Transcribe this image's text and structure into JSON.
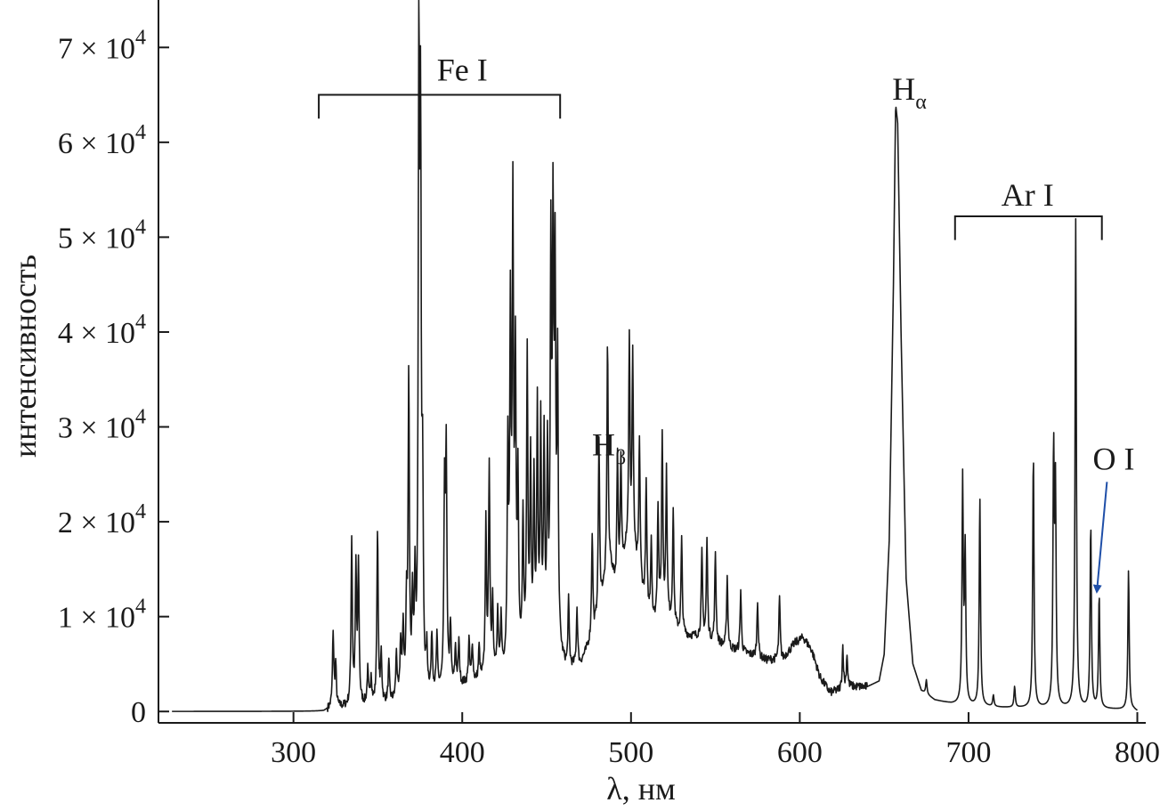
{
  "chart_data": {
    "type": "line",
    "title": "",
    "xlabel": "λ, нм",
    "ylabel": "интенсивность",
    "xlim": [
      220,
      805
    ],
    "ylim": [
      -1200,
      75000
    ],
    "grid": false,
    "legend": "none",
    "line_color": "#1a1a1a",
    "arrow_color": "#1f4fa8",
    "x_ticks": [
      300,
      400,
      500,
      600,
      700,
      800
    ],
    "x_tick_labels": [
      "300",
      "400",
      "500",
      "600",
      "700",
      "800"
    ],
    "y_ticks": [
      0,
      10000,
      20000,
      30000,
      40000,
      50000,
      60000,
      70000
    ],
    "y_tick_labels": [
      {
        "mant": "0",
        "exp": ""
      },
      {
        "mant": "1 × 10",
        "exp": "4"
      },
      {
        "mant": "2 × 10",
        "exp": "4"
      },
      {
        "mant": "3 × 10",
        "exp": "4"
      },
      {
        "mant": "4 × 10",
        "exp": "4"
      },
      {
        "mant": "5 × 10",
        "exp": "4"
      },
      {
        "mant": "6 × 10",
        "exp": "4"
      },
      {
        "mant": "7 × 10",
        "exp": "4"
      }
    ],
    "continuum": [
      [
        228,
        0
      ],
      [
        318,
        0
      ],
      [
        322,
        300
      ],
      [
        330,
        400
      ],
      [
        340,
        600
      ],
      [
        350,
        700
      ],
      [
        360,
        900
      ],
      [
        370,
        1200
      ],
      [
        380,
        1600
      ],
      [
        390,
        2200
      ],
      [
        400,
        2700
      ],
      [
        410,
        3000
      ],
      [
        420,
        3600
      ],
      [
        430,
        4300
      ],
      [
        440,
        5000
      ],
      [
        450,
        5500
      ],
      [
        458,
        5300
      ],
      [
        462,
        4200
      ],
      [
        470,
        4800
      ],
      [
        478,
        8000
      ],
      [
        483,
        12000
      ],
      [
        488,
        15000
      ],
      [
        492,
        12000
      ],
      [
        497,
        17000
      ],
      [
        502,
        16000
      ],
      [
        507,
        12000
      ],
      [
        512,
        9000
      ],
      [
        520,
        10000
      ],
      [
        530,
        8000
      ],
      [
        540,
        7800
      ],
      [
        550,
        7200
      ],
      [
        560,
        6500
      ],
      [
        570,
        6000
      ],
      [
        580,
        5400
      ],
      [
        590,
        5500
      ],
      [
        597,
        7200
      ],
      [
        602,
        7800
      ],
      [
        607,
        6500
      ],
      [
        612,
        3600
      ],
      [
        618,
        2000
      ],
      [
        625,
        2300
      ],
      [
        630,
        2600
      ],
      [
        640,
        2600
      ],
      [
        647,
        3200
      ],
      [
        650,
        6000
      ],
      [
        653,
        18000
      ],
      [
        655.5,
        45000
      ],
      [
        656.8,
        64000
      ],
      [
        658,
        62000
      ],
      [
        660,
        40000
      ],
      [
        663,
        14000
      ],
      [
        667,
        5000
      ],
      [
        672,
        2200
      ],
      [
        680,
        1200
      ],
      [
        690,
        800
      ],
      [
        700,
        600
      ],
      [
        720,
        400
      ],
      [
        740,
        350
      ],
      [
        760,
        300
      ],
      [
        780,
        250
      ],
      [
        798,
        150
      ],
      [
        800,
        0
      ]
    ],
    "peaks": [
      {
        "x": 323.5,
        "h": 8000
      },
      {
        "x": 325,
        "h": 4500
      },
      {
        "x": 334.5,
        "h": 17500
      },
      {
        "x": 337,
        "h": 14000
      },
      {
        "x": 338.5,
        "h": 14500
      },
      {
        "x": 344,
        "h": 3500
      },
      {
        "x": 346,
        "h": 3000
      },
      {
        "x": 349.8,
        "h": 18500
      },
      {
        "x": 352,
        "h": 5000
      },
      {
        "x": 356.5,
        "h": 4000
      },
      {
        "x": 361,
        "h": 5000
      },
      {
        "x": 363.5,
        "h": 6000
      },
      {
        "x": 365,
        "h": 7500
      },
      {
        "x": 367,
        "h": 9000
      },
      {
        "x": 368.3,
        "h": 33500
      },
      {
        "x": 370.5,
        "h": 9000
      },
      {
        "x": 372,
        "h": 11000
      },
      {
        "x": 374.3,
        "h": 64000
      },
      {
        "x": 375.3,
        "h": 55000
      },
      {
        "x": 376.5,
        "h": 20000
      },
      {
        "x": 379,
        "h": 4000
      },
      {
        "x": 382,
        "h": 6000
      },
      {
        "x": 385,
        "h": 5500
      },
      {
        "x": 389.5,
        "h": 20000
      },
      {
        "x": 390.5,
        "h": 24500
      },
      {
        "x": 393,
        "h": 6500
      },
      {
        "x": 396,
        "h": 4000
      },
      {
        "x": 398,
        "h": 4500
      },
      {
        "x": 404,
        "h": 4500
      },
      {
        "x": 406,
        "h": 4000
      },
      {
        "x": 410,
        "h": 3500
      },
      {
        "x": 414,
        "h": 16000
      },
      {
        "x": 416,
        "h": 22000
      },
      {
        "x": 418,
        "h": 8000
      },
      {
        "x": 421,
        "h": 6000
      },
      {
        "x": 423,
        "h": 5500
      },
      {
        "x": 427,
        "h": 22000
      },
      {
        "x": 428.5,
        "h": 35000
      },
      {
        "x": 430,
        "h": 47000
      },
      {
        "x": 431.5,
        "h": 30000
      },
      {
        "x": 433,
        "h": 18000
      },
      {
        "x": 436,
        "h": 15000
      },
      {
        "x": 438.5,
        "h": 32000
      },
      {
        "x": 440.5,
        "h": 20000
      },
      {
        "x": 442.5,
        "h": 18000
      },
      {
        "x": 444.5,
        "h": 25500
      },
      {
        "x": 446.5,
        "h": 24000
      },
      {
        "x": 448.5,
        "h": 22000
      },
      {
        "x": 450.5,
        "h": 20000
      },
      {
        "x": 452.5,
        "h": 41000
      },
      {
        "x": 453.8,
        "h": 42000
      },
      {
        "x": 455,
        "h": 38000
      },
      {
        "x": 456.5,
        "h": 30000
      },
      {
        "x": 463,
        "h": 7000
      },
      {
        "x": 468,
        "h": 6000
      },
      {
        "x": 477,
        "h": 11000
      },
      {
        "x": 481,
        "h": 18000
      },
      {
        "x": 486.1,
        "h": 25000
      },
      {
        "x": 492,
        "h": 15000
      },
      {
        "x": 494,
        "h": 12000
      },
      {
        "x": 499,
        "h": 22000
      },
      {
        "x": 501,
        "h": 21000
      },
      {
        "x": 505,
        "h": 15000
      },
      {
        "x": 509,
        "h": 13000
      },
      {
        "x": 512,
        "h": 9000
      },
      {
        "x": 516,
        "h": 12000
      },
      {
        "x": 518.5,
        "h": 19000
      },
      {
        "x": 521,
        "h": 15000
      },
      {
        "x": 525,
        "h": 12000
      },
      {
        "x": 530,
        "h": 10000
      },
      {
        "x": 542,
        "h": 9000
      },
      {
        "x": 545,
        "h": 10500
      },
      {
        "x": 550,
        "h": 9500
      },
      {
        "x": 557,
        "h": 7500
      },
      {
        "x": 565,
        "h": 6500
      },
      {
        "x": 575,
        "h": 6000
      },
      {
        "x": 588,
        "h": 6500
      },
      {
        "x": 625.5,
        "h": 4500
      },
      {
        "x": 628,
        "h": 3500
      },
      {
        "x": 675,
        "h": 1500
      },
      {
        "x": 696.5,
        "h": 23500
      },
      {
        "x": 698,
        "h": 16000
      },
      {
        "x": 706.7,
        "h": 22000
      },
      {
        "x": 714.7,
        "h": 1200
      },
      {
        "x": 727.3,
        "h": 2200
      },
      {
        "x": 738.4,
        "h": 27000
      },
      {
        "x": 750.4,
        "h": 26500
      },
      {
        "x": 751.5,
        "h": 22000
      },
      {
        "x": 763.5,
        "h": 51500
      },
      {
        "x": 772.4,
        "h": 19500
      },
      {
        "x": 777.4,
        "h": 12000
      },
      {
        "x": 794.8,
        "h": 14800
      }
    ],
    "annotations": [
      {
        "name": "fe-i",
        "text": "Fe I",
        "sub": "",
        "x": 400,
        "y": 66500,
        "bracket": [
          315,
          458
        ],
        "bracket_y": 65000,
        "bracket_drop": 2500
      },
      {
        "name": "ar-i",
        "text": "Ar I",
        "sub": "",
        "x": 735,
        "y": 53300,
        "bracket": [
          692,
          779
        ],
        "bracket_y": 52200,
        "bracket_drop": 2500
      },
      {
        "name": "h-alpha",
        "text": "H",
        "sub": "α",
        "x": 665,
        "y": 64500
      },
      {
        "name": "h-beta",
        "text": "H",
        "sub": "β",
        "x": 487,
        "y": 27000
      },
      {
        "name": "o-i",
        "text": "O I",
        "sub": "",
        "x": 786,
        "y": 25500,
        "arrow_from": [
          782,
          24200
        ],
        "arrow_to": [
          776,
          12600
        ]
      }
    ]
  }
}
